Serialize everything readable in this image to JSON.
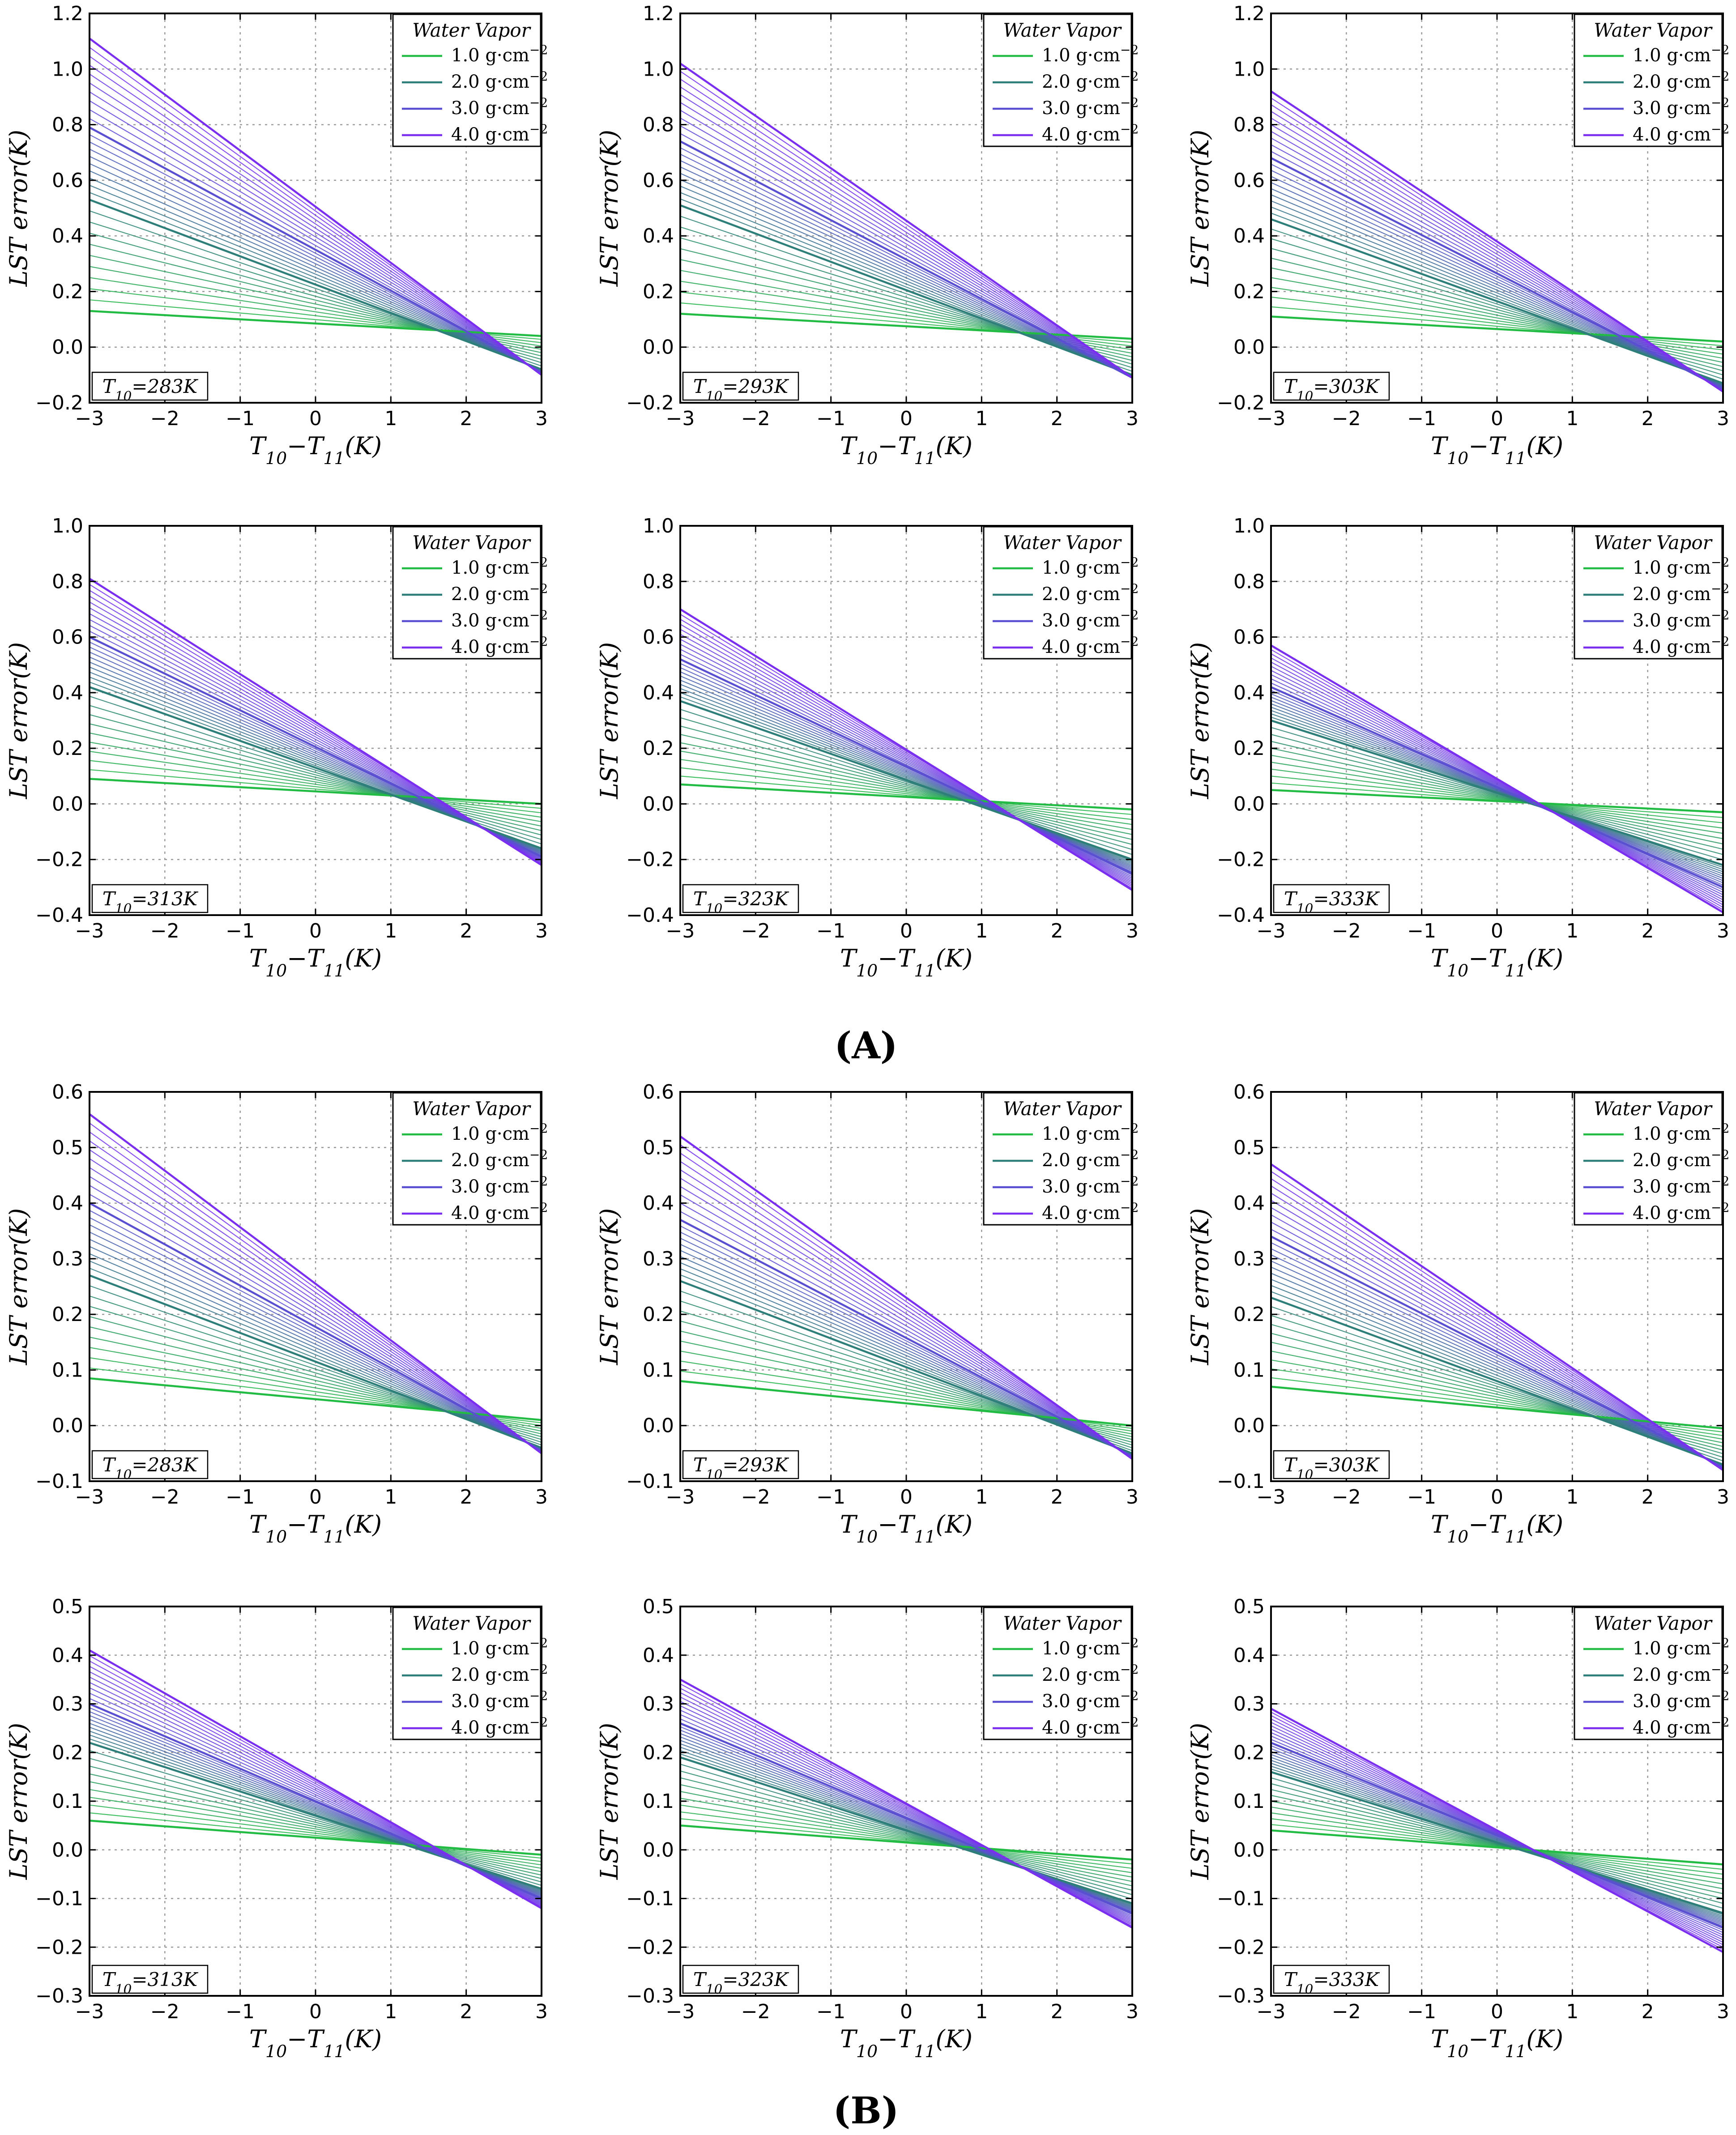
{
  "figure": {
    "group_labels": [
      "(A)",
      "(B)"
    ]
  },
  "common": {
    "xlabel": "T10−T11(K)",
    "ylabel": "LST error(K)",
    "xlim": [
      -3,
      3
    ],
    "xticks": [
      -3,
      -2,
      -1,
      0,
      1,
      2,
      3
    ],
    "legend": {
      "title": "Water Vapor",
      "entries": [
        "1.0 g·cm−2",
        "2.0 g·cm−2",
        "3.0 g·cm−2",
        "4.0 g·cm−2"
      ],
      "colors": [
        "#22bb44",
        "#2e7f7a",
        "#5a4fd0",
        "#7a2ff0"
      ]
    }
  },
  "chart_data": [
    {
      "group": "A",
      "type": "line",
      "t_label": "T10=283K",
      "ylim": [
        -0.2,
        1.2
      ],
      "yticks": [
        "-0.2",
        "0.0",
        "0.2",
        "0.4",
        "0.6",
        "0.8",
        "1.0",
        "1.2"
      ],
      "series": [
        {
          "name": "1.0 g·cm−2",
          "x": [
            -3,
            3
          ],
          "values": [
            0.13,
            0.04
          ]
        },
        {
          "name": "2.0 g·cm−2",
          "x": [
            -3,
            3
          ],
          "values": [
            0.53,
            -0.08
          ]
        },
        {
          "name": "3.0 g·cm−2",
          "x": [
            -3,
            3
          ],
          "values": [
            0.79,
            -0.09
          ]
        },
        {
          "name": "4.0 g·cm−2",
          "x": [
            -3,
            3
          ],
          "values": [
            1.11,
            -0.1
          ]
        }
      ]
    },
    {
      "group": "A",
      "type": "line",
      "t_label": "T10=293K",
      "ylim": [
        -0.2,
        1.2
      ],
      "yticks": [
        "-0.2",
        "0.0",
        "0.2",
        "0.4",
        "0.6",
        "0.8",
        "1.0",
        "1.2"
      ],
      "series": [
        {
          "name": "1.0 g·cm−2",
          "x": [
            -3,
            3
          ],
          "values": [
            0.12,
            0.03
          ]
        },
        {
          "name": "2.0 g·cm−2",
          "x": [
            -3,
            3
          ],
          "values": [
            0.51,
            -0.1
          ]
        },
        {
          "name": "3.0 g·cm−2",
          "x": [
            -3,
            3
          ],
          "values": [
            0.74,
            -0.11
          ]
        },
        {
          "name": "4.0 g·cm−2",
          "x": [
            -3,
            3
          ],
          "values": [
            1.02,
            -0.11
          ]
        }
      ]
    },
    {
      "group": "A",
      "type": "line",
      "t_label": "T10=303K",
      "ylim": [
        -0.2,
        1.2
      ],
      "yticks": [
        "-0.2",
        "0.0",
        "0.2",
        "0.4",
        "0.6",
        "0.8",
        "1.0",
        "1.2"
      ],
      "series": [
        {
          "name": "1.0 g·cm−2",
          "x": [
            -3,
            3
          ],
          "values": [
            0.11,
            0.02
          ]
        },
        {
          "name": "2.0 g·cm−2",
          "x": [
            -3,
            3
          ],
          "values": [
            0.46,
            -0.13
          ]
        },
        {
          "name": "3.0 g·cm−2",
          "x": [
            -3,
            3
          ],
          "values": [
            0.68,
            -0.15
          ]
        },
        {
          "name": "4.0 g·cm−2",
          "x": [
            -3,
            3
          ],
          "values": [
            0.92,
            -0.16
          ]
        }
      ]
    },
    {
      "group": "A",
      "type": "line",
      "t_label": "T10=313K",
      "ylim": [
        -0.4,
        1.0
      ],
      "yticks": [
        "-0.4",
        "-0.2",
        "0.0",
        "0.2",
        "0.4",
        "0.6",
        "0.8",
        "1.0"
      ],
      "series": [
        {
          "name": "1.0 g·cm−2",
          "x": [
            -3,
            3
          ],
          "values": [
            0.09,
            0.0
          ]
        },
        {
          "name": "2.0 g·cm−2",
          "x": [
            -3,
            3
          ],
          "values": [
            0.42,
            -0.16
          ]
        },
        {
          "name": "3.0 g·cm−2",
          "x": [
            -3,
            3
          ],
          "values": [
            0.6,
            -0.19
          ]
        },
        {
          "name": "4.0 g·cm−2",
          "x": [
            -3,
            3
          ],
          "values": [
            0.81,
            -0.22
          ]
        }
      ]
    },
    {
      "group": "A",
      "type": "line",
      "t_label": "T10=323K",
      "ylim": [
        -0.4,
        1.0
      ],
      "yticks": [
        "-0.4",
        "-0.2",
        "0.0",
        "0.2",
        "0.4",
        "0.6",
        "0.8",
        "1.0"
      ],
      "series": [
        {
          "name": "1.0 g·cm−2",
          "x": [
            -3,
            3
          ],
          "values": [
            0.07,
            -0.02
          ]
        },
        {
          "name": "2.0 g·cm−2",
          "x": [
            -3,
            3
          ],
          "values": [
            0.37,
            -0.2
          ]
        },
        {
          "name": "3.0 g·cm−2",
          "x": [
            -3,
            3
          ],
          "values": [
            0.52,
            -0.25
          ]
        },
        {
          "name": "4.0 g·cm−2",
          "x": [
            -3,
            3
          ],
          "values": [
            0.7,
            -0.31
          ]
        }
      ]
    },
    {
      "group": "A",
      "type": "line",
      "t_label": "T10=333K",
      "ylim": [
        -0.4,
        1.0
      ],
      "yticks": [
        "-0.4",
        "-0.2",
        "0.0",
        "0.2",
        "0.4",
        "0.6",
        "0.8",
        "1.0"
      ],
      "series": [
        {
          "name": "1.0 g·cm−2",
          "x": [
            -3,
            3
          ],
          "values": [
            0.05,
            -0.03
          ]
        },
        {
          "name": "2.0 g·cm−2",
          "x": [
            -3,
            3
          ],
          "values": [
            0.3,
            -0.22
          ]
        },
        {
          "name": "3.0 g·cm−2",
          "x": [
            -3,
            3
          ],
          "values": [
            0.42,
            -0.3
          ]
        },
        {
          "name": "4.0 g·cm−2",
          "x": [
            -3,
            3
          ],
          "values": [
            0.57,
            -0.39
          ]
        }
      ]
    },
    {
      "group": "B",
      "type": "line",
      "t_label": "T10=283K",
      "ylim": [
        -0.1,
        0.6
      ],
      "yticks": [
        "-0.1",
        "0.0",
        "0.1",
        "0.2",
        "0.3",
        "0.4",
        "0.5",
        "0.6"
      ],
      "series": [
        {
          "name": "1.0 g·cm−2",
          "x": [
            -3,
            3
          ],
          "values": [
            0.085,
            0.01
          ]
        },
        {
          "name": "2.0 g·cm−2",
          "x": [
            -3,
            3
          ],
          "values": [
            0.27,
            -0.04
          ]
        },
        {
          "name": "3.0 g·cm−2",
          "x": [
            -3,
            3
          ],
          "values": [
            0.4,
            -0.045
          ]
        },
        {
          "name": "4.0 g·cm−2",
          "x": [
            -3,
            3
          ],
          "values": [
            0.56,
            -0.05
          ]
        }
      ]
    },
    {
      "group": "B",
      "type": "line",
      "t_label": "T10=293K",
      "ylim": [
        -0.1,
        0.6
      ],
      "yticks": [
        "-0.1",
        "0.0",
        "0.1",
        "0.2",
        "0.3",
        "0.4",
        "0.5",
        "0.6"
      ],
      "series": [
        {
          "name": "1.0 g·cm−2",
          "x": [
            -3,
            3
          ],
          "values": [
            0.08,
            0.0
          ]
        },
        {
          "name": "2.0 g·cm−2",
          "x": [
            -3,
            3
          ],
          "values": [
            0.26,
            -0.05
          ]
        },
        {
          "name": "3.0 g·cm−2",
          "x": [
            -3,
            3
          ],
          "values": [
            0.37,
            -0.055
          ]
        },
        {
          "name": "4.0 g·cm−2",
          "x": [
            -3,
            3
          ],
          "values": [
            0.52,
            -0.06
          ]
        }
      ]
    },
    {
      "group": "B",
      "type": "line",
      "t_label": "T10=303K",
      "ylim": [
        -0.1,
        0.6
      ],
      "yticks": [
        "-0.1",
        "0.0",
        "0.1",
        "0.2",
        "0.3",
        "0.4",
        "0.5",
        "0.6"
      ],
      "series": [
        {
          "name": "1.0 g·cm−2",
          "x": [
            -3,
            3
          ],
          "values": [
            0.07,
            -0.005
          ]
        },
        {
          "name": "2.0 g·cm−2",
          "x": [
            -3,
            3
          ],
          "values": [
            0.23,
            -0.07
          ]
        },
        {
          "name": "3.0 g·cm−2",
          "x": [
            -3,
            3
          ],
          "values": [
            0.34,
            -0.075
          ]
        },
        {
          "name": "4.0 g·cm−2",
          "x": [
            -3,
            3
          ],
          "values": [
            0.47,
            -0.08
          ]
        }
      ]
    },
    {
      "group": "B",
      "type": "line",
      "t_label": "T10=313K",
      "ylim": [
        -0.3,
        0.5
      ],
      "yticks": [
        "-0.3",
        "-0.2",
        "-0.1",
        "0.0",
        "0.1",
        "0.2",
        "0.3",
        "0.4",
        "0.5"
      ],
      "series": [
        {
          "name": "1.0 g·cm−2",
          "x": [
            -3,
            3
          ],
          "values": [
            0.06,
            -0.01
          ]
        },
        {
          "name": "2.0 g·cm−2",
          "x": [
            -3,
            3
          ],
          "values": [
            0.22,
            -0.08
          ]
        },
        {
          "name": "3.0 g·cm−2",
          "x": [
            -3,
            3
          ],
          "values": [
            0.3,
            -0.1
          ]
        },
        {
          "name": "4.0 g·cm−2",
          "x": [
            -3,
            3
          ],
          "values": [
            0.41,
            -0.12
          ]
        }
      ]
    },
    {
      "group": "B",
      "type": "line",
      "t_label": "T10=323K",
      "ylim": [
        -0.3,
        0.5
      ],
      "yticks": [
        "-0.3",
        "-0.2",
        "-0.1",
        "0.0",
        "0.1",
        "0.2",
        "0.3",
        "0.4",
        "0.5"
      ],
      "series": [
        {
          "name": "1.0 g·cm−2",
          "x": [
            -3,
            3
          ],
          "values": [
            0.05,
            -0.02
          ]
        },
        {
          "name": "2.0 g·cm−2",
          "x": [
            -3,
            3
          ],
          "values": [
            0.19,
            -0.11
          ]
        },
        {
          "name": "3.0 g·cm−2",
          "x": [
            -3,
            3
          ],
          "values": [
            0.26,
            -0.13
          ]
        },
        {
          "name": "4.0 g·cm−2",
          "x": [
            -3,
            3
          ],
          "values": [
            0.35,
            -0.16
          ]
        }
      ]
    },
    {
      "group": "B",
      "type": "line",
      "t_label": "T10=333K",
      "ylim": [
        -0.3,
        0.5
      ],
      "yticks": [
        "-0.3",
        "-0.2",
        "-0.1",
        "0.0",
        "0.1",
        "0.2",
        "0.3",
        "0.4",
        "0.5"
      ],
      "series": [
        {
          "name": "1.0 g·cm−2",
          "x": [
            -3,
            3
          ],
          "values": [
            0.04,
            -0.03
          ]
        },
        {
          "name": "2.0 g·cm−2",
          "x": [
            -3,
            3
          ],
          "values": [
            0.16,
            -0.13
          ]
        },
        {
          "name": "3.0 g·cm−2",
          "x": [
            -3,
            3
          ],
          "values": [
            0.22,
            -0.16
          ]
        },
        {
          "name": "4.0 g·cm−2",
          "x": [
            -3,
            3
          ],
          "values": [
            0.29,
            -0.21
          ]
        }
      ]
    }
  ]
}
